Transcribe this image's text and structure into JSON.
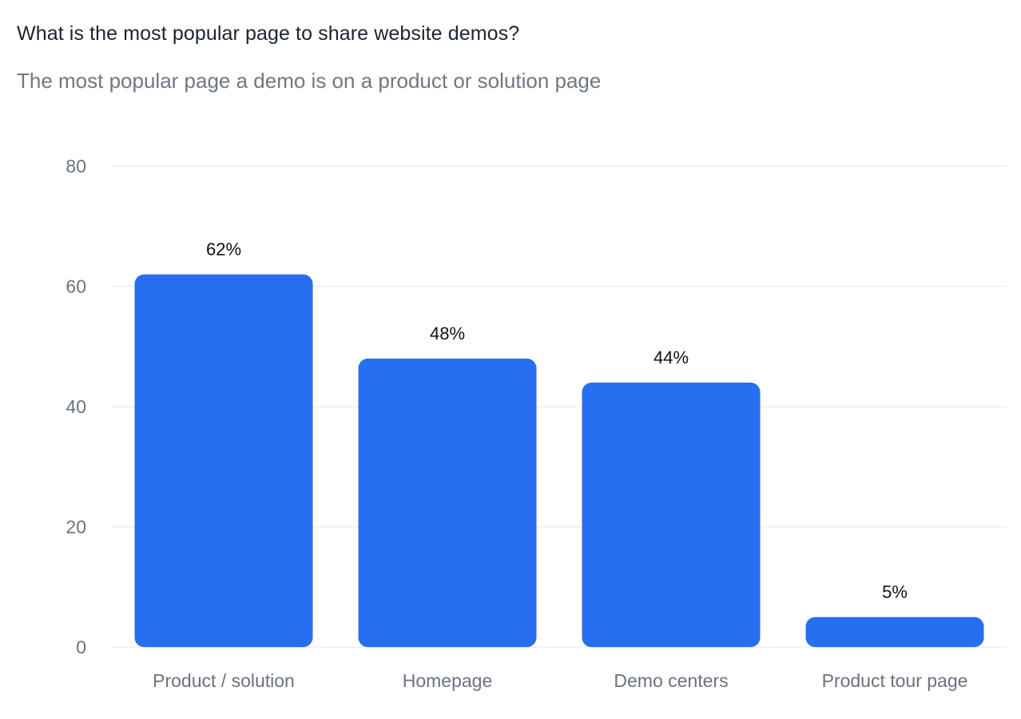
{
  "chart_data": {
    "type": "bar",
    "title": "What is the most popular page to share website demos?",
    "subtitle": "The most popular page a demo is on a product or solution page",
    "categories": [
      "Product / solution",
      "Homepage",
      "Demo centers",
      "Product tour page"
    ],
    "values": [
      62,
      48,
      44,
      5
    ],
    "data_labels": [
      "62%",
      "48%",
      "44%",
      "5%"
    ],
    "ylim": [
      0,
      80
    ],
    "yticks": [
      0,
      20,
      40,
      60,
      80
    ],
    "xlabel": "",
    "ylabel": "",
    "grid": true,
    "legend": "none",
    "colors": {
      "bar": "#276ef1",
      "grid": "#eeeeef",
      "title": "#1b2432",
      "subtitle": "#707783",
      "tick": "#6b7280",
      "data_label": "#111111"
    }
  }
}
